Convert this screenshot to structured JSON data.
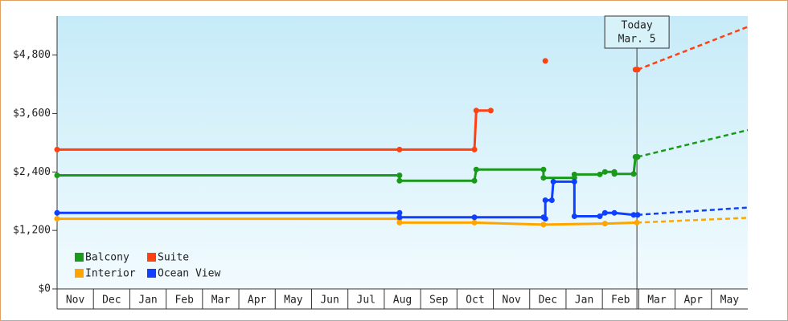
{
  "chart_data": {
    "type": "line",
    "xlim": [
      0,
      19
    ],
    "xticks": [
      {
        "value": 0.5,
        "label": "Nov"
      },
      {
        "value": 1.5,
        "label": "Dec"
      },
      {
        "value": 2.5,
        "label": "Jan"
      },
      {
        "value": 3.5,
        "label": "Feb"
      },
      {
        "value": 4.5,
        "label": "Mar"
      },
      {
        "value": 5.5,
        "label": "Apr"
      },
      {
        "value": 6.5,
        "label": "May"
      },
      {
        "value": 7.5,
        "label": "Jun"
      },
      {
        "value": 8.5,
        "label": "Jul"
      },
      {
        "value": 9.5,
        "label": "Aug"
      },
      {
        "value": 10.5,
        "label": "Sep"
      },
      {
        "value": 11.5,
        "label": "Oct"
      },
      {
        "value": 12.5,
        "label": "Nov"
      },
      {
        "value": 13.5,
        "label": "Dec"
      },
      {
        "value": 14.5,
        "label": "Jan"
      },
      {
        "value": 15.5,
        "label": "Feb"
      },
      {
        "value": 16.5,
        "label": "Mar"
      },
      {
        "value": 17.5,
        "label": "Apr"
      },
      {
        "value": 18.5,
        "label": "May"
      }
    ],
    "ylim": [
      0,
      5600
    ],
    "yticks": [
      {
        "value": 0,
        "label": "$0"
      },
      {
        "value": 1200,
        "label": "$1,200"
      },
      {
        "value": 2400,
        "label": "$2,400"
      },
      {
        "value": 3600,
        "label": "$3,600"
      },
      {
        "value": 4800,
        "label": "$4,800"
      }
    ],
    "today": {
      "x": 15.95,
      "label": "Today",
      "date": "Mar. 5"
    },
    "series": [
      {
        "name": "Balcony",
        "color": "#1a9a1a",
        "x": [
          0,
          9.42,
          9.42,
          11.48,
          11.53,
          13.38,
          13.38,
          14.23,
          14.23,
          14.93,
          15.07,
          15.33,
          15.33,
          15.86,
          15.91,
          15.97
        ],
        "values": [
          2330,
          2330,
          2220,
          2220,
          2450,
          2450,
          2280,
          2280,
          2350,
          2350,
          2400,
          2400,
          2360,
          2360,
          2710,
          2710
        ],
        "forecast_x": [
          15.97,
          19
        ],
        "forecast_values": [
          2710,
          3260
        ]
      },
      {
        "name": "Suite",
        "color": "#ff4010",
        "x": [
          0,
          9.42,
          11.48,
          11.53,
          11.93,
          null,
          13.43,
          null,
          15.91,
          15.97
        ],
        "values": [
          2860,
          2860,
          2860,
          3660,
          3660,
          null,
          4680,
          null,
          4500,
          4500
        ],
        "forecast_x": [
          15.97,
          19
        ],
        "forecast_values": [
          4500,
          5380
        ]
      },
      {
        "name": "Interior",
        "color": "#ffa500",
        "x": [
          0,
          9.42,
          9.42,
          11.48,
          13.38,
          15.07,
          15.95
        ],
        "values": [
          1440,
          1440,
          1360,
          1360,
          1320,
          1340,
          1360
        ],
        "forecast_x": [
          15.95,
          19
        ],
        "forecast_values": [
          1360,
          1460
        ]
      },
      {
        "name": "Ocean View",
        "color": "#1040ff",
        "x": [
          0,
          9.42,
          9.42,
          11.48,
          13.38,
          13.43,
          13.43,
          13.61,
          13.65,
          14.23,
          14.23,
          14.93,
          15.07,
          15.33,
          15.86,
          15.97
        ],
        "values": [
          1560,
          1560,
          1470,
          1470,
          1470,
          1440,
          1820,
          1820,
          2200,
          2200,
          1490,
          1490,
          1560,
          1560,
          1520,
          1520
        ],
        "forecast_x": [
          15.97,
          19
        ],
        "forecast_values": [
          1520,
          1670
        ]
      }
    ]
  }
}
